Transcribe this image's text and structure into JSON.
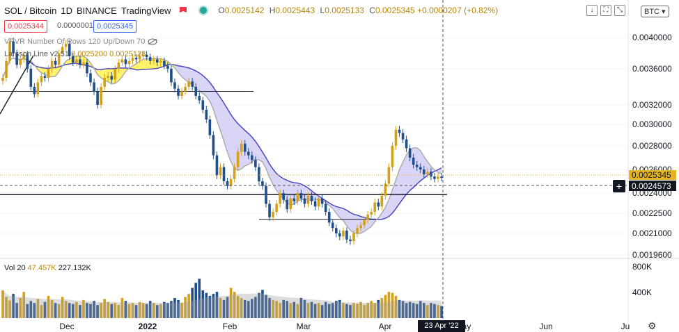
{
  "header": {
    "symbol": "SOL / Bitcoin",
    "interval": "1D",
    "exchange": "BINANCE",
    "platform": "TradingView",
    "ohlc": {
      "o_label": "O",
      "o": "0.0025142",
      "h_label": "H",
      "h": "0.0025443",
      "l_label": "L",
      "l": "0.0025133",
      "c_label": "C",
      "c": "0.0025345",
      "change": "+0.0000207 (+0.82%)"
    }
  },
  "price_boxes": {
    "bid": "0.0025344",
    "spread": "0.0000001",
    "ask": "0.0025345"
  },
  "indicators": {
    "vpvr": "VPVR Number Of Rows 120 Up/Down 70",
    "larsson": {
      "name": "Larsson Line v2.51",
      "v1": "0.0025200",
      "v2": "0.0025128"
    },
    "volume": {
      "name": "Vol 20",
      "v1": "47.457K",
      "v2": "227.132K"
    }
  },
  "toolbar": {
    "currency": "BTC"
  },
  "crosshair": {
    "price": "0.0024573",
    "date": "23 Apr '22"
  },
  "last_price_tag": "0.0025345",
  "colors": {
    "up": "#d4a017",
    "down": "#1f4e8c",
    "band_yellow": "#fff36b",
    "band_blue": "#b9b3f0",
    "band_line": "#3f3fbf"
  },
  "chart_data": {
    "type": "candlestick",
    "title": "SOL / Bitcoin · 1D · BINANCE",
    "y_axis": {
      "ticks": [
        "0.0040000",
        "0.0036000",
        "0.0032000",
        "0.0030000",
        "0.0028000",
        "0.0026000",
        "0.0024000",
        "0.0022500",
        "0.0021000",
        "0.0019600"
      ],
      "range": [
        0.00192,
        0.0044
      ]
    },
    "volume_axis": {
      "ticks": [
        "800K",
        "400K"
      ]
    },
    "x_axis": {
      "labels": [
        "Dec",
        "2022",
        "Feb",
        "Mar",
        "Apr",
        "May",
        "Jun",
        "Ju"
      ]
    },
    "horizontal_lines": [
      0.00335,
      0.0024,
      0.00222
    ],
    "series_close": [
      0.0035,
      0.0037,
      0.00395,
      0.0038,
      0.00365,
      0.00372,
      0.00378,
      0.0036,
      0.0034,
      0.00332,
      0.00345,
      0.00352,
      0.0035,
      0.0036,
      0.0037,
      0.00365,
      0.0038,
      0.00388,
      0.00392,
      0.00376,
      0.00368,
      0.00372,
      0.00365,
      0.00368,
      0.00355,
      0.00345,
      0.00335,
      0.0032,
      0.0034,
      0.0035,
      0.00352,
      0.00348,
      0.0036,
      0.00368,
      0.00372,
      0.00366,
      0.0037,
      0.00374,
      0.00372,
      0.00376,
      0.00378,
      0.00375,
      0.0037,
      0.00372,
      0.00368,
      0.0037,
      0.00364,
      0.0036,
      0.00345,
      0.00338,
      0.0033,
      0.00335,
      0.0034,
      0.00346,
      0.0034,
      0.0033,
      0.00325,
      0.00315,
      0.00305,
      0.0029,
      0.00272,
      0.00255,
      0.00262,
      0.0025,
      0.00246,
      0.00252,
      0.00262,
      0.00275,
      0.00282,
      0.00275,
      0.00272,
      0.00268,
      0.00262,
      0.0025,
      0.00246,
      0.00232,
      0.00222,
      0.00226,
      0.00232,
      0.0024,
      0.00235,
      0.00228,
      0.00236,
      0.00234,
      0.0024,
      0.00236,
      0.00232,
      0.00238,
      0.00234,
      0.0023,
      0.00236,
      0.00232,
      0.00226,
      0.00218,
      0.00214,
      0.0021,
      0.00208,
      0.00212,
      0.00206,
      0.00205,
      0.0021,
      0.00214,
      0.00216,
      0.0022,
      0.00224,
      0.00226,
      0.00233,
      0.0023,
      0.00238,
      0.00248,
      0.00262,
      0.0028,
      0.00295,
      0.00292,
      0.00286,
      0.00278,
      0.0027,
      0.00264,
      0.00262,
      0.0026,
      0.00256,
      0.00258,
      0.00254,
      0.00252,
      0.00254,
      0.00253
    ],
    "volume": [
      0.55,
      0.42,
      0.35,
      0.48,
      0.3,
      0.4,
      0.52,
      0.28,
      0.34,
      0.3,
      0.38,
      0.26,
      0.32,
      0.44,
      0.36,
      0.3,
      0.28,
      0.42,
      0.34,
      0.3,
      0.28,
      0.32,
      0.26,
      0.36,
      0.3,
      0.28,
      0.34,
      0.26,
      0.3,
      0.38,
      0.32,
      0.28,
      0.3,
      0.26,
      0.4,
      0.34,
      0.28,
      0.3,
      0.26,
      0.32,
      0.3,
      0.28,
      0.34,
      0.3,
      0.26,
      0.28,
      0.32,
      0.3,
      0.34,
      0.4,
      0.36,
      0.3,
      0.42,
      0.48,
      0.6,
      0.7,
      0.78,
      0.55,
      0.5,
      0.44,
      0.48,
      0.52,
      0.4,
      0.36,
      0.42,
      0.6,
      0.52,
      0.44,
      0.4,
      0.36,
      0.34,
      0.38,
      0.42,
      0.5,
      0.56,
      0.46,
      0.4,
      0.36,
      0.34,
      0.3,
      0.36,
      0.34,
      0.3,
      0.32,
      0.28,
      0.4,
      0.36,
      0.3,
      0.32,
      0.28,
      0.3,
      0.26,
      0.32,
      0.28,
      0.3,
      0.34,
      0.36,
      0.3,
      0.28,
      0.26,
      0.3,
      0.28,
      0.32,
      0.26,
      0.3,
      0.34,
      0.3,
      0.36,
      0.4,
      0.46,
      0.52,
      0.5,
      0.44,
      0.36,
      0.34,
      0.3,
      0.32,
      0.3,
      0.28,
      0.34,
      0.3,
      0.26,
      0.3,
      0.28,
      0.26,
      0.24
    ]
  }
}
